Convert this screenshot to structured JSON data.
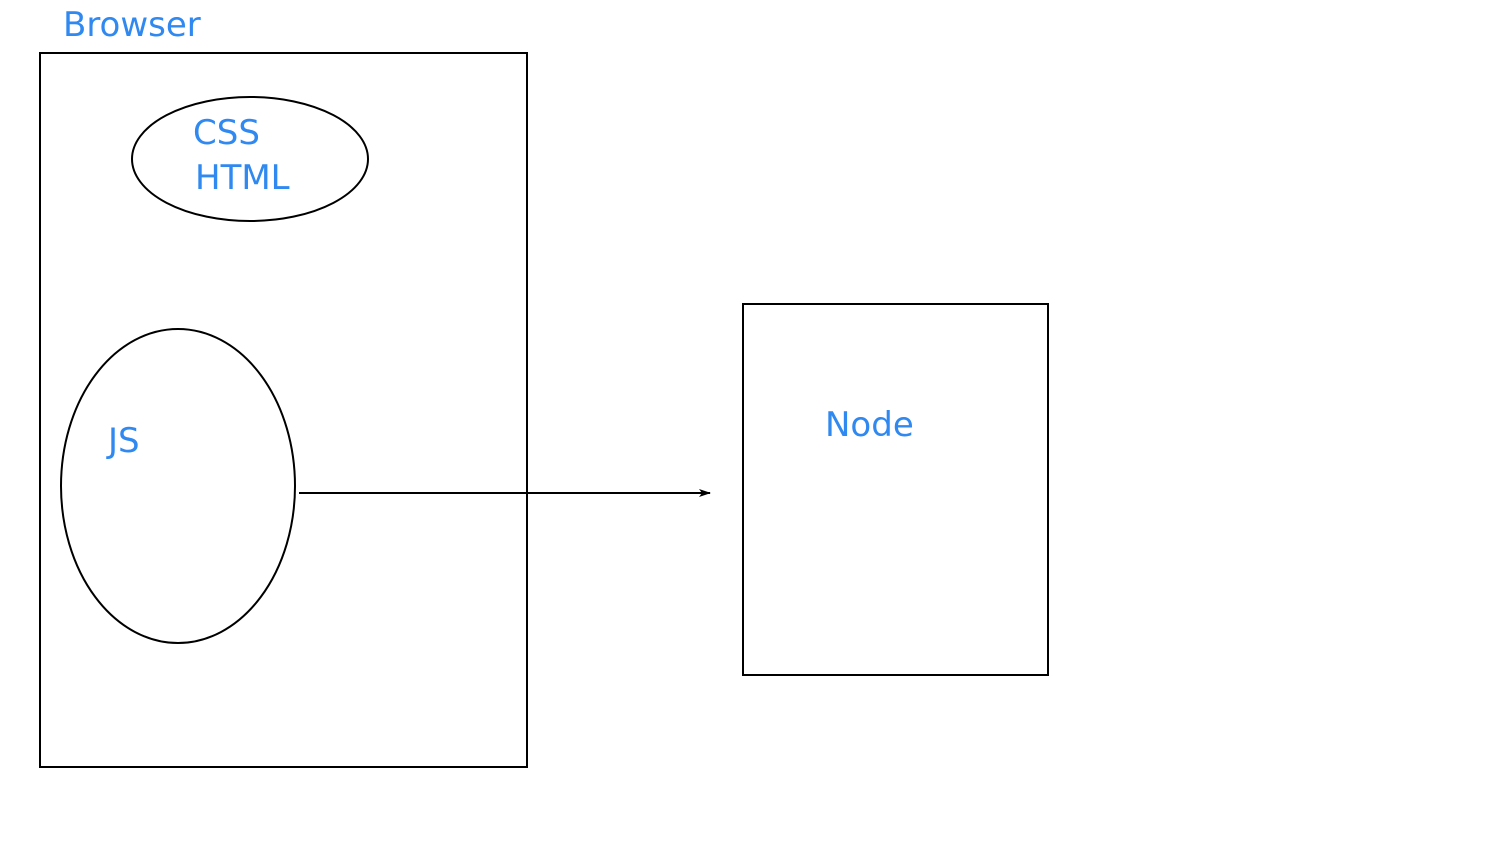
{
  "diagram": {
    "colors": {
      "text": "#2f89f0",
      "stroke": "#000000",
      "background": "#ffffff"
    },
    "labels": {
      "browser": "Browser",
      "css": "CSS",
      "html": "HTML",
      "js": "JS",
      "node": "Node"
    }
  }
}
